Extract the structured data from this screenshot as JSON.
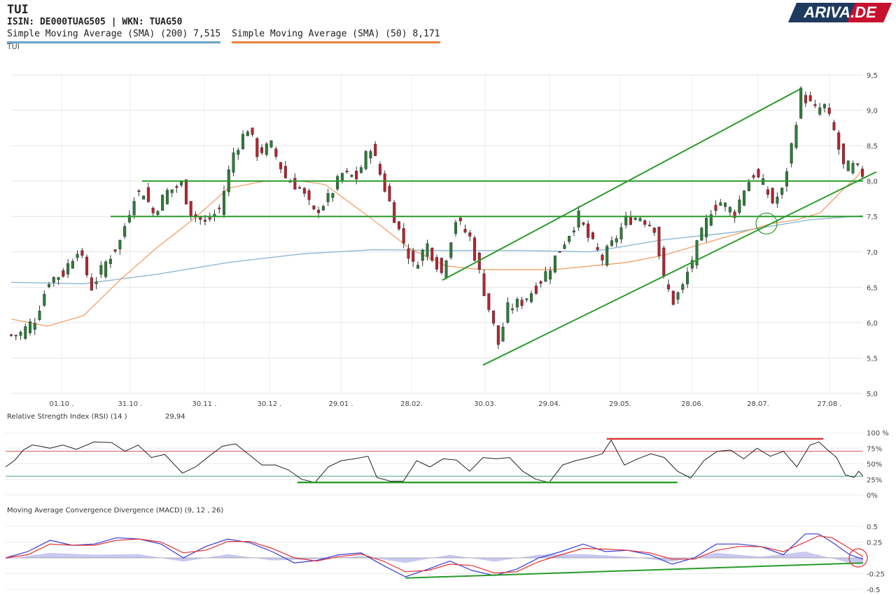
{
  "header": {
    "title": "TUI",
    "isin_line": "ISIN: DE000TUAG505  | WKN: TUAG50",
    "sma200_label": "Simple Moving Average (SMA) (200) 7,515",
    "sma50_label": "Simple Moving Average (SMA) (50) 8,171",
    "sublabel": "TUI"
  },
  "logo": {
    "text": "ARIVA.DE",
    "color_dark": "#1f3a5f",
    "color_red": "#c8102e"
  },
  "colors": {
    "up_candle": "#2e7d3a",
    "down_candle": "#b8232f",
    "sma200": "#8fb8d4",
    "sma50": "#f0995a",
    "trendline": "#2a9a2a",
    "rsi_line": "#222222",
    "rsi_upper_band": "#d05050",
    "rsi_lower_band": "#4aa37a",
    "macd_line": "#3a3ad8",
    "signal_line": "#e03030",
    "histogram": "#c8c8f0"
  },
  "chart_data": [
    {
      "type": "candlestick",
      "x_tick_labels": [
        "01.10 .",
        "31.10 .",
        "30.11 .",
        "30.12 .",
        "29.01 .",
        "28.02.",
        "30.03.",
        "29.04.",
        "29.05.",
        "28.06.",
        "28.07.",
        "27.08 ."
      ],
      "y_tick_labels": [
        "9,5",
        "9,0",
        "8,5",
        "8,0",
        "7,5",
        "7,0",
        "6,5",
        "6,0",
        "5,5",
        "5,0"
      ],
      "ylim": [
        5.0,
        9.5
      ],
      "close_path": [
        [
          0,
          5.82
        ],
        [
          2,
          5.85
        ],
        [
          5,
          6.05
        ],
        [
          8,
          6.6
        ],
        [
          11,
          6.7
        ],
        [
          14,
          7.05
        ],
        [
          17,
          6.5
        ],
        [
          20,
          6.85
        ],
        [
          23,
          7.15
        ],
        [
          26,
          7.8
        ],
        [
          28,
          7.85
        ],
        [
          30,
          7.55
        ],
        [
          33,
          7.85
        ],
        [
          36,
          7.95
        ],
        [
          38,
          7.55
        ],
        [
          41,
          7.4
        ],
        [
          44,
          7.6
        ],
        [
          47,
          8.4
        ],
        [
          50,
          8.75
        ],
        [
          52,
          8.4
        ],
        [
          55,
          8.5
        ],
        [
          58,
          8.05
        ],
        [
          61,
          7.9
        ],
        [
          64,
          7.55
        ],
        [
          67,
          7.75
        ],
        [
          70,
          8.1
        ],
        [
          73,
          8.05
        ],
        [
          76,
          8.5
        ],
        [
          78,
          8.1
        ],
        [
          80,
          7.7
        ],
        [
          82,
          7.3
        ],
        [
          85,
          6.8
        ],
        [
          88,
          7.1
        ],
        [
          91,
          6.7
        ],
        [
          94,
          7.45
        ],
        [
          97,
          7.2
        ],
        [
          99,
          6.7
        ],
        [
          101,
          6.2
        ],
        [
          103,
          5.7
        ],
        [
          105,
          6.2
        ],
        [
          108,
          6.3
        ],
        [
          111,
          6.5
        ],
        [
          114,
          6.8
        ],
        [
          117,
          7.15
        ],
        [
          120,
          7.5
        ],
        [
          122,
          7.2
        ],
        [
          125,
          6.9
        ],
        [
          127,
          7.1
        ],
        [
          130,
          7.45
        ],
        [
          133,
          7.5
        ],
        [
          136,
          7.35
        ],
        [
          138,
          6.6
        ],
        [
          140,
          6.3
        ],
        [
          142,
          6.5
        ],
        [
          144,
          6.9
        ],
        [
          146,
          7.25
        ],
        [
          148,
          7.6
        ],
        [
          150,
          7.7
        ],
        [
          153,
          7.55
        ],
        [
          155,
          7.9
        ],
        [
          157,
          8.1
        ],
        [
          159,
          7.95
        ],
        [
          161,
          7.7
        ],
        [
          163,
          7.85
        ],
        [
          165,
          8.5
        ],
        [
          167,
          9.25
        ],
        [
          170,
          9.0
        ],
        [
          172,
          9.05
        ],
        [
          174,
          8.7
        ],
        [
          176,
          8.2
        ],
        [
          178,
          8.2
        ],
        [
          180,
          8.1
        ]
      ],
      "sma50": [
        [
          0,
          6.05
        ],
        [
          6,
          5.95
        ],
        [
          12,
          6.1
        ],
        [
          18,
          6.6
        ],
        [
          24,
          7.05
        ],
        [
          30,
          7.45
        ],
        [
          36,
          7.9
        ],
        [
          42,
          8.0
        ],
        [
          48,
          8.0
        ],
        [
          52,
          7.95
        ],
        [
          56,
          7.7
        ],
        [
          60,
          7.45
        ],
        [
          66,
          7.05
        ],
        [
          72,
          6.8
        ],
        [
          78,
          6.75
        ],
        [
          84,
          6.75
        ],
        [
          90,
          6.75
        ],
        [
          96,
          6.8
        ],
        [
          102,
          6.85
        ],
        [
          108,
          6.95
        ],
        [
          114,
          7.1
        ],
        [
          120,
          7.25
        ],
        [
          126,
          7.4
        ],
        [
          130,
          7.45
        ],
        [
          134,
          7.55
        ],
        [
          138,
          7.9
        ],
        [
          140,
          8.05
        ],
        [
          141,
          8.17
        ]
      ],
      "sma200": [
        [
          0,
          6.57
        ],
        [
          12,
          6.55
        ],
        [
          24,
          6.68
        ],
        [
          36,
          6.85
        ],
        [
          48,
          6.97
        ],
        [
          60,
          7.03
        ],
        [
          72,
          7.02
        ],
        [
          84,
          7.02
        ],
        [
          96,
          7.0
        ],
        [
          108,
          7.17
        ],
        [
          120,
          7.28
        ],
        [
          132,
          7.45
        ],
        [
          141,
          7.51
        ]
      ],
      "horizontal_levels": [
        8.0,
        7.5
      ],
      "channel_upper": [
        [
          7,
          6.6
        ],
        [
          177,
          9.3
        ]
      ],
      "channel_lower": [
        [
          2,
          5.4
        ],
        [
          183,
          8.13
        ]
      ],
      "circle_marker": [
        [
          4,
          7.4
        ]
      ]
    },
    {
      "type": "line",
      "title": "Relative Strength Index (RSI) (14 )",
      "current_value": "29,94",
      "y_tick_labels": [
        "100 %",
        "75%",
        "50%",
        "25%",
        "0%"
      ],
      "ylim": [
        0,
        100
      ],
      "bands": [
        70,
        30
      ],
      "values": [
        [
          0,
          45
        ],
        [
          2,
          55
        ],
        [
          4,
          72
        ],
        [
          6,
          80
        ],
        [
          8,
          78
        ],
        [
          10,
          75
        ],
        [
          13,
          80
        ],
        [
          16,
          73
        ],
        [
          20,
          85
        ],
        [
          24,
          84
        ],
        [
          27,
          70
        ],
        [
          30,
          80
        ],
        [
          33,
          60
        ],
        [
          36,
          65
        ],
        [
          40,
          35
        ],
        [
          43,
          45
        ],
        [
          46,
          62
        ],
        [
          49,
          78
        ],
        [
          52,
          82
        ],
        [
          55,
          65
        ],
        [
          58,
          48
        ],
        [
          61,
          48
        ],
        [
          64,
          40
        ],
        [
          67,
          25
        ],
        [
          70,
          20
        ],
        [
          73,
          45
        ],
        [
          76,
          55
        ],
        [
          79,
          58
        ],
        [
          82,
          62
        ],
        [
          84,
          28
        ],
        [
          87,
          22
        ],
        [
          90,
          22
        ],
        [
          93,
          55
        ],
        [
          96,
          45
        ],
        [
          99,
          58
        ],
        [
          102,
          56
        ],
        [
          105,
          38
        ],
        [
          108,
          60
        ],
        [
          111,
          58
        ],
        [
          114,
          60
        ],
        [
          117,
          38
        ],
        [
          120,
          25
        ],
        [
          123,
          20
        ],
        [
          126,
          48
        ],
        [
          129,
          55
        ],
        [
          132,
          60
        ],
        [
          135,
          66
        ],
        [
          137,
          88
        ],
        [
          140,
          48
        ],
        [
          143,
          58
        ],
        [
          146,
          66
        ],
        [
          149,
          60
        ],
        [
          152,
          38
        ],
        [
          155,
          27
        ],
        [
          158,
          55
        ],
        [
          161,
          70
        ],
        [
          164,
          72
        ],
        [
          167,
          58
        ],
        [
          170,
          75
        ],
        [
          173,
          62
        ],
        [
          176,
          70
        ],
        [
          179,
          45
        ],
        [
          182,
          80
        ],
        [
          184,
          85
        ],
        [
          186,
          72
        ],
        [
          188,
          60
        ],
        [
          190,
          32
        ],
        [
          192,
          28
        ],
        [
          193,
          38
        ],
        [
          194,
          30
        ]
      ],
      "trend_lines": [
        {
          "kind": "resistance",
          "from": [
            136,
            90
          ],
          "to": [
            185,
            90
          ]
        },
        {
          "kind": "support",
          "from": [
            66,
            20
          ],
          "to": [
            152,
            20
          ]
        }
      ]
    },
    {
      "type": "line",
      "title": "Moving Average Convergence Divergence (MACD) (9, 12 , 26)",
      "y_tick_labels": [
        "0.5",
        "0.25",
        "-0.25",
        "-0.5"
      ],
      "ylim": [
        -0.5,
        0.5
      ],
      "series": [
        {
          "values": [
            [
              0,
              0.0
            ],
            [
              5,
              0.1
            ],
            [
              10,
              0.28
            ],
            [
              15,
              0.2
            ],
            [
              20,
              0.22
            ],
            [
              25,
              0.32
            ],
            [
              30,
              0.3
            ],
            [
              35,
              0.22
            ],
            [
              40,
              0.0
            ],
            [
              45,
              0.18
            ],
            [
              50,
              0.3
            ],
            [
              55,
              0.24
            ],
            [
              60,
              0.1
            ],
            [
              65,
              -0.08
            ],
            [
              70,
              -0.04
            ],
            [
              75,
              0.05
            ],
            [
              80,
              0.08
            ],
            [
              85,
              -0.12
            ],
            [
              90,
              -0.3
            ],
            [
              95,
              -0.18
            ],
            [
              100,
              -0.05
            ],
            [
              105,
              -0.2
            ],
            [
              110,
              -0.28
            ],
            [
              115,
              -0.18
            ],
            [
              120,
              0.0
            ],
            [
              125,
              0.1
            ],
            [
              130,
              0.22
            ],
            [
              135,
              0.1
            ],
            [
              140,
              0.12
            ],
            [
              145,
              0.05
            ],
            [
              150,
              -0.1
            ],
            [
              155,
              0.0
            ],
            [
              160,
              0.22
            ],
            [
              165,
              0.22
            ],
            [
              170,
              0.18
            ],
            [
              175,
              0.05
            ],
            [
              180,
              0.38
            ],
            [
              183,
              0.38
            ],
            [
              186,
              0.25
            ],
            [
              190,
              0.05
            ],
            [
              193,
              -0.02
            ]
          ]
        },
        {
          "values": [
            [
              0,
              0.0
            ],
            [
              5,
              0.05
            ],
            [
              10,
              0.22
            ],
            [
              15,
              0.2
            ],
            [
              20,
              0.2
            ],
            [
              25,
              0.28
            ],
            [
              30,
              0.3
            ],
            [
              35,
              0.25
            ],
            [
              40,
              0.08
            ],
            [
              45,
              0.12
            ],
            [
              50,
              0.26
            ],
            [
              55,
              0.26
            ],
            [
              60,
              0.15
            ],
            [
              65,
              0.0
            ],
            [
              70,
              -0.05
            ],
            [
              75,
              0.02
            ],
            [
              80,
              0.06
            ],
            [
              85,
              -0.05
            ],
            [
              90,
              -0.22
            ],
            [
              95,
              -0.2
            ],
            [
              100,
              -0.1
            ],
            [
              105,
              -0.12
            ],
            [
              110,
              -0.24
            ],
            [
              115,
              -0.22
            ],
            [
              120,
              -0.06
            ],
            [
              125,
              0.05
            ],
            [
              130,
              0.15
            ],
            [
              135,
              0.14
            ],
            [
              140,
              0.12
            ],
            [
              145,
              0.08
            ],
            [
              150,
              -0.02
            ],
            [
              155,
              -0.02
            ],
            [
              160,
              0.12
            ],
            [
              165,
              0.18
            ],
            [
              170,
              0.18
            ],
            [
              175,
              0.1
            ],
            [
              180,
              0.25
            ],
            [
              183,
              0.35
            ],
            [
              186,
              0.32
            ],
            [
              190,
              0.15
            ],
            [
              193,
              0.02
            ]
          ]
        }
      ],
      "histogram": [
        [
          0,
          -0.02
        ],
        [
          10,
          0.08
        ],
        [
          20,
          0.05
        ],
        [
          30,
          0.06
        ],
        [
          40,
          -0.06
        ],
        [
          50,
          0.06
        ],
        [
          60,
          -0.04
        ],
        [
          70,
          -0.02
        ],
        [
          80,
          0.03
        ],
        [
          90,
          -0.08
        ],
        [
          100,
          0.05
        ],
        [
          110,
          -0.06
        ],
        [
          120,
          0.05
        ],
        [
          130,
          0.06
        ],
        [
          140,
          0.02
        ],
        [
          150,
          -0.06
        ],
        [
          160,
          0.08
        ],
        [
          170,
          0.02
        ],
        [
          180,
          0.1
        ],
        [
          190,
          -0.08
        ],
        [
          193,
          -0.1
        ]
      ],
      "trend_line": {
        "from": [
          90,
          -0.32
        ],
        "to": [
          193,
          -0.08
        ]
      },
      "circle_marker": [
        [
          193,
          0.0
        ]
      ]
    }
  ]
}
